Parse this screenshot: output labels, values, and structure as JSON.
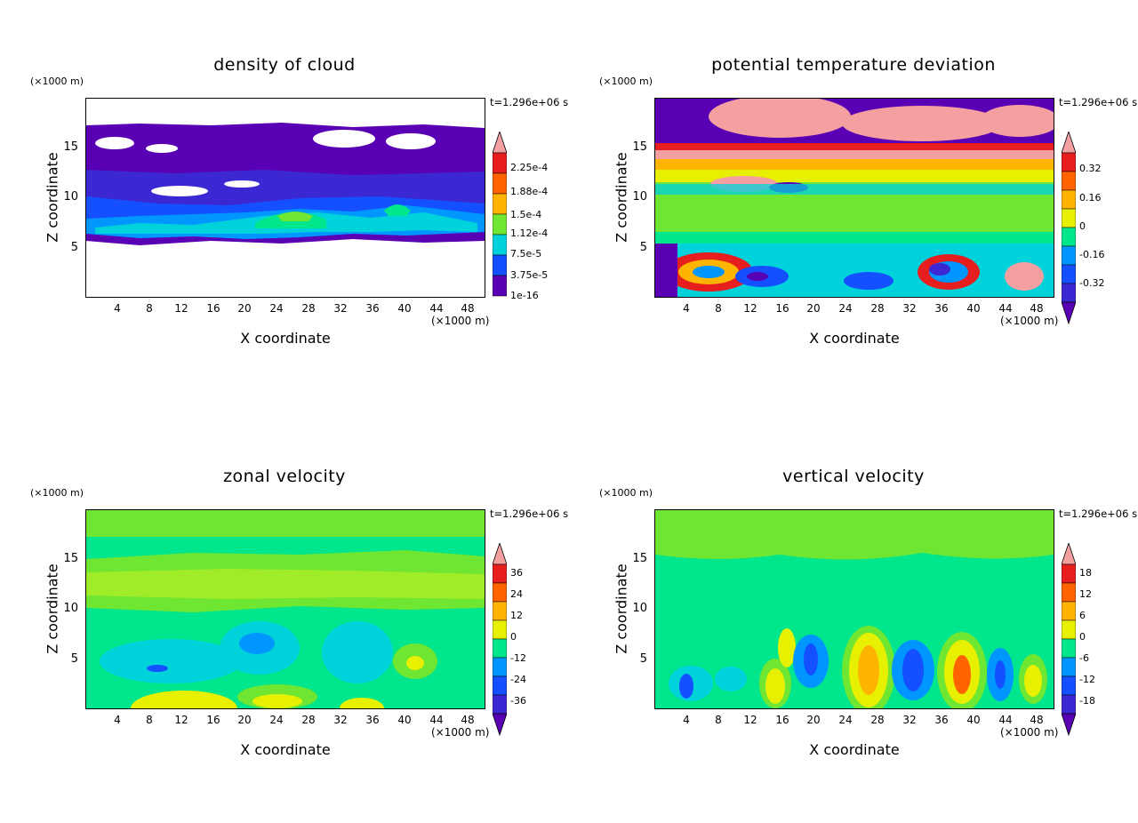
{
  "chart_data": [
    {
      "type": "heatmap",
      "title": "density of cloud",
      "xlabel": "X coordinate",
      "ylabel": "Z coordinate",
      "x_unit": "(×1000 m)",
      "z_unit": "(×1000 m)",
      "time_label": "t=1.296e+06 s",
      "xlim": [
        0,
        50
      ],
      "ylim": [
        0,
        19.5
      ],
      "x_ticks": [
        "4",
        "8",
        "12",
        "16",
        "20",
        "24",
        "28",
        "32",
        "36",
        "40",
        "44",
        "48"
      ],
      "y_ticks": [
        "5",
        "10",
        "15"
      ],
      "colorbar_labels": [
        "2.25e-4",
        "1.88e-4",
        "1.5e-4",
        "1.12e-4",
        "7.5e-5",
        "3.75e-5",
        "1e-16"
      ],
      "colors": [
        "#5a00b4",
        "#3c28d2",
        "#1450ff",
        "#0096ff",
        "#00d2dc",
        "#00e68c",
        "#6ee632",
        "#e6f000",
        "#ffb400",
        "#ff6400",
        "#e61e1e",
        "#f5a0a0"
      ]
    },
    {
      "type": "heatmap",
      "title": "potential temperature deviation",
      "xlabel": "X coordinate",
      "ylabel": "Z coordinate",
      "x_unit": "(×1000 m)",
      "z_unit": "(×1000 m)",
      "time_label": "t=1.296e+06 s",
      "xlim": [
        0,
        50
      ],
      "ylim": [
        0,
        19.5
      ],
      "x_ticks": [
        "4",
        "8",
        "12",
        "16",
        "20",
        "24",
        "28",
        "32",
        "36",
        "40",
        "44",
        "48"
      ],
      "y_ticks": [
        "5",
        "10",
        "15"
      ],
      "colorbar_labels": [
        "0.32",
        "0.16",
        "0",
        "-0.16",
        "-0.32"
      ],
      "colors": [
        "#5a00b4",
        "#3c28d2",
        "#1450ff",
        "#0096ff",
        "#00d2dc",
        "#00e68c",
        "#6ee632",
        "#e6f000",
        "#ffb400",
        "#ff6400",
        "#e61e1e",
        "#f5a0a0"
      ]
    },
    {
      "type": "heatmap",
      "title": "zonal velocity",
      "xlabel": "X coordinate",
      "ylabel": "Z coordinate",
      "x_unit": "(×1000 m)",
      "z_unit": "(×1000 m)",
      "time_label": "t=1.296e+06 s",
      "xlim": [
        0,
        50
      ],
      "ylim": [
        0,
        19.5
      ],
      "x_ticks": [
        "4",
        "8",
        "12",
        "16",
        "20",
        "24",
        "28",
        "32",
        "36",
        "40",
        "44",
        "48"
      ],
      "y_ticks": [
        "5",
        "10",
        "15"
      ],
      "colorbar_labels": [
        "36",
        "24",
        "12",
        "0",
        "-12",
        "-24",
        "-36"
      ],
      "colors": [
        "#5a00b4",
        "#3c28d2",
        "#1450ff",
        "#0096ff",
        "#00d2dc",
        "#00e68c",
        "#6ee632",
        "#e6f000",
        "#ffb400",
        "#ff6400",
        "#e61e1e",
        "#f5a0a0"
      ]
    },
    {
      "type": "heatmap",
      "title": "vertical velocity",
      "xlabel": "X coordinate",
      "ylabel": "Z coordinate",
      "x_unit": "(×1000 m)",
      "z_unit": "(×1000 m)",
      "time_label": "t=1.296e+06 s",
      "xlim": [
        0,
        50
      ],
      "ylim": [
        0,
        19.5
      ],
      "x_ticks": [
        "4",
        "8",
        "12",
        "16",
        "20",
        "24",
        "28",
        "32",
        "36",
        "40",
        "44",
        "48"
      ],
      "y_ticks": [
        "5",
        "10",
        "15"
      ],
      "colorbar_labels": [
        "18",
        "12",
        "6",
        "0",
        "-6",
        "-12",
        "-18"
      ],
      "colors": [
        "#5a00b4",
        "#3c28d2",
        "#1450ff",
        "#0096ff",
        "#00d2dc",
        "#00e68c",
        "#6ee632",
        "#e6f000",
        "#ffb400",
        "#ff6400",
        "#e61e1e",
        "#f5a0a0"
      ]
    }
  ]
}
